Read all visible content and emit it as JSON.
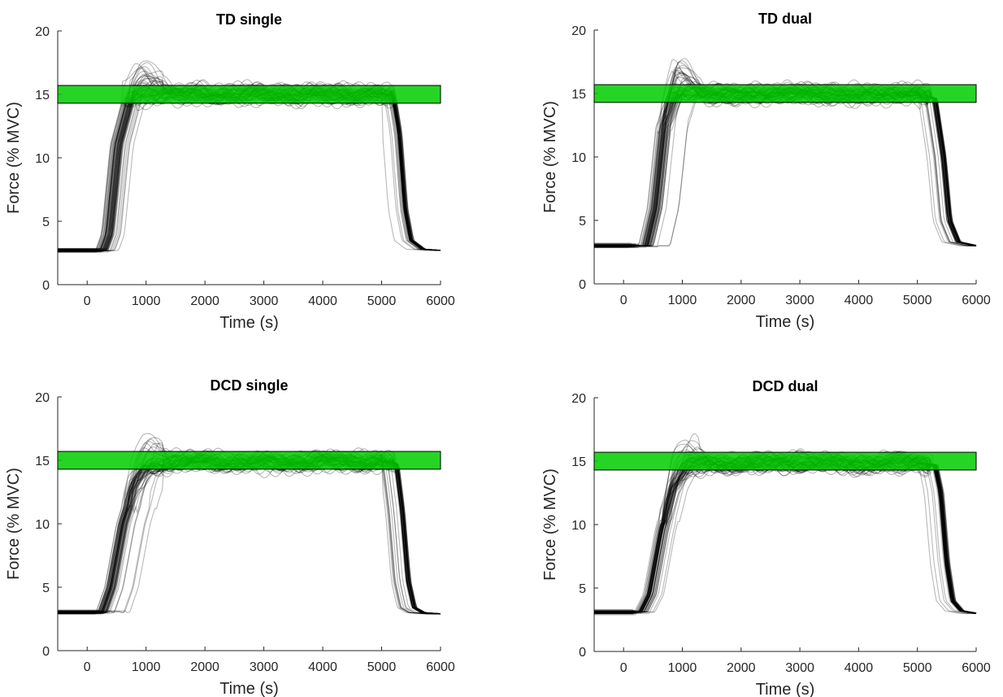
{
  "colors": {
    "target_band": "#00cc00",
    "trace": "#000000",
    "axis": "#262626"
  },
  "chart_data": [
    {
      "type": "line",
      "title": "TD single",
      "xlabel": "Time (s)",
      "ylabel": "Force (% MVC)",
      "xlim": [
        -500,
        6000
      ],
      "ylim": [
        0,
        20
      ],
      "xticks": [
        0,
        1000,
        2000,
        3000,
        4000,
        5000,
        6000
      ],
      "yticks": [
        0,
        5,
        10,
        15,
        20
      ],
      "target_band": [
        14.3,
        15.7
      ],
      "representative_trace": {
        "x": [
          -500,
          250,
          350,
          500,
          700,
          900,
          1200,
          2000,
          3000,
          4000,
          5000,
          5200,
          5300,
          5400,
          5500,
          5700,
          6000
        ],
        "y": [
          2.7,
          2.7,
          4.0,
          11.0,
          14.5,
          15.0,
          15.0,
          15.0,
          15.0,
          15.0,
          15.0,
          14.8,
          12.0,
          6.0,
          3.5,
          2.8,
          2.7
        ]
      },
      "trace_count": 60
    },
    {
      "type": "line",
      "title": "TD dual",
      "xlabel": "Time (s)",
      "ylabel": "Force (% MVC)",
      "xlim": [
        -500,
        6000
      ],
      "ylim": [
        0,
        20
      ],
      "xticks": [
        0,
        1000,
        2000,
        3000,
        4000,
        5000,
        6000
      ],
      "yticks": [
        0,
        5,
        10,
        15,
        20
      ],
      "target_band": [
        14.3,
        15.7
      ],
      "representative_trace": {
        "x": [
          -500,
          400,
          550,
          700,
          900,
          1200,
          2000,
          3000,
          4000,
          5000,
          5300,
          5450,
          5550,
          5700,
          6000
        ],
        "y": [
          3.0,
          3.0,
          6.0,
          12.5,
          15.0,
          15.0,
          14.9,
          15.0,
          14.9,
          15.0,
          14.6,
          10.0,
          5.0,
          3.3,
          3.0
        ]
      },
      "trace_count": 60
    },
    {
      "type": "line",
      "title": "DCD single",
      "xlabel": "Time (s)",
      "ylabel": "Force (% MVC)",
      "xlim": [
        -500,
        6000
      ],
      "ylim": [
        0,
        20
      ],
      "xticks": [
        0,
        1000,
        2000,
        3000,
        4000,
        5000,
        6000
      ],
      "yticks": [
        0,
        5,
        10,
        15,
        20
      ],
      "target_band": [
        14.3,
        15.7
      ],
      "representative_trace": {
        "x": [
          -500,
          250,
          400,
          600,
          800,
          1000,
          1300,
          2000,
          3000,
          4000,
          5000,
          5250,
          5350,
          5450,
          5550,
          5700,
          6000
        ],
        "y": [
          3.0,
          3.0,
          5.0,
          10.0,
          13.0,
          14.3,
          14.8,
          14.9,
          14.8,
          14.9,
          14.9,
          14.7,
          11.0,
          5.5,
          3.4,
          3.0,
          2.9
        ]
      },
      "trace_count": 60
    },
    {
      "type": "line",
      "title": "DCD dual",
      "xlabel": "Time (s)",
      "ylabel": "Force (% MVC)",
      "xlim": [
        -500,
        6000
      ],
      "ylim": [
        0,
        20
      ],
      "xticks": [
        0,
        1000,
        2000,
        3000,
        4000,
        5000,
        6000
      ],
      "yticks": [
        0,
        5,
        10,
        15,
        20
      ],
      "target_band": [
        14.3,
        15.7
      ],
      "representative_trace": {
        "x": [
          -500,
          300,
          450,
          650,
          850,
          1100,
          1400,
          2000,
          3000,
          4000,
          5000,
          5300,
          5400,
          5500,
          5600,
          5750,
          6000
        ],
        "y": [
          3.1,
          3.1,
          4.5,
          9.5,
          13.0,
          14.5,
          14.8,
          14.8,
          14.9,
          14.8,
          14.9,
          14.7,
          12.5,
          7.0,
          4.0,
          3.2,
          3.0
        ]
      },
      "trace_count": 60
    }
  ]
}
